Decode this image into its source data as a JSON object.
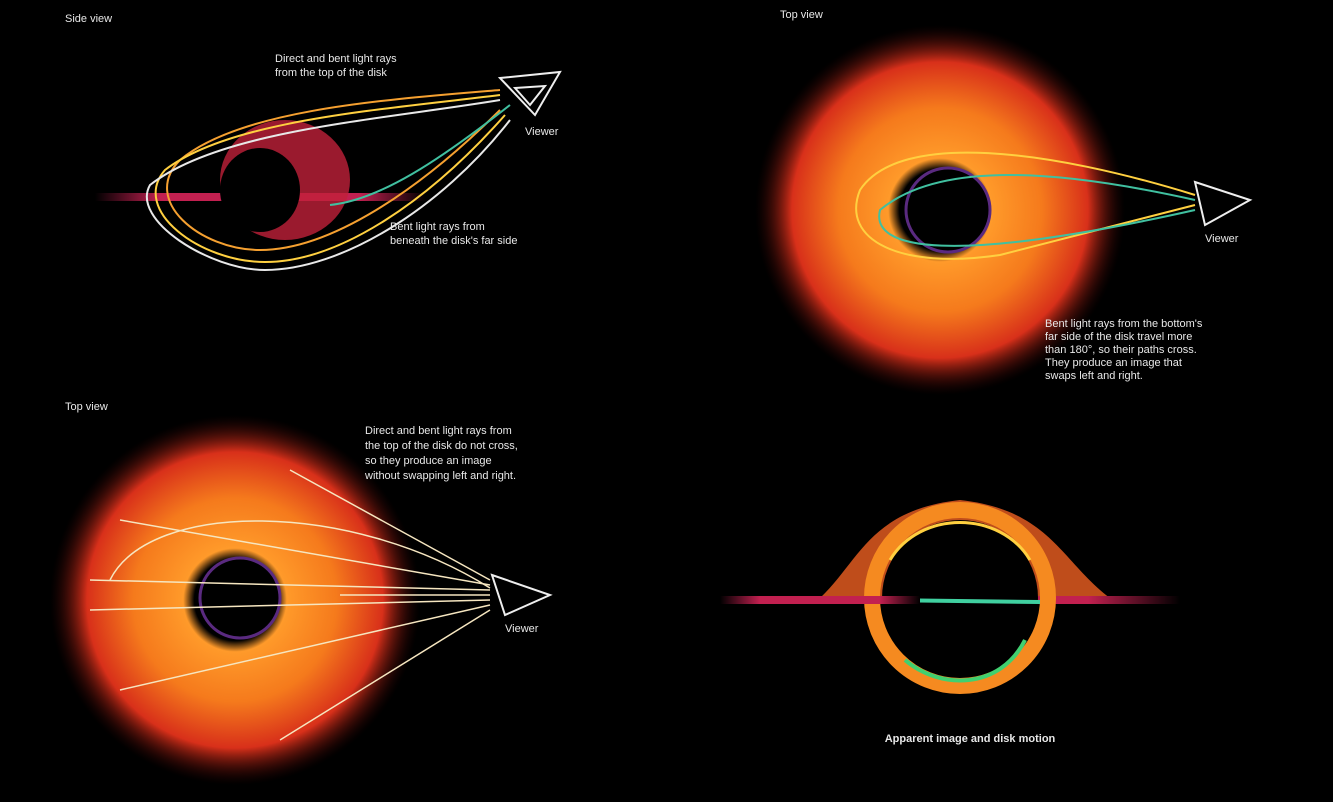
{
  "panels": [
    {
      "title": "Side view",
      "note_top": [
        "Direct and bent light rays",
        "from the top of the disk"
      ],
      "note_bottom": [
        "Bent light rays from",
        "beneath the disk's far side"
      ],
      "viewer": "Viewer"
    },
    {
      "title": "Top view",
      "note": [
        "Bent light rays from the bottom's",
        "far side of the disk travel more",
        "than 180°, so their paths cross.",
        "They produce an image that",
        "swaps left and right."
      ],
      "viewer": "Viewer"
    },
    {
      "title": "Top view",
      "note": [
        "Direct and bent light rays from",
        "the top of the disk do not cross,",
        "so they produce an image",
        "without swapping left and right."
      ],
      "viewer": "Viewer"
    },
    {
      "caption": "Apparent image and disk motion"
    }
  ]
}
